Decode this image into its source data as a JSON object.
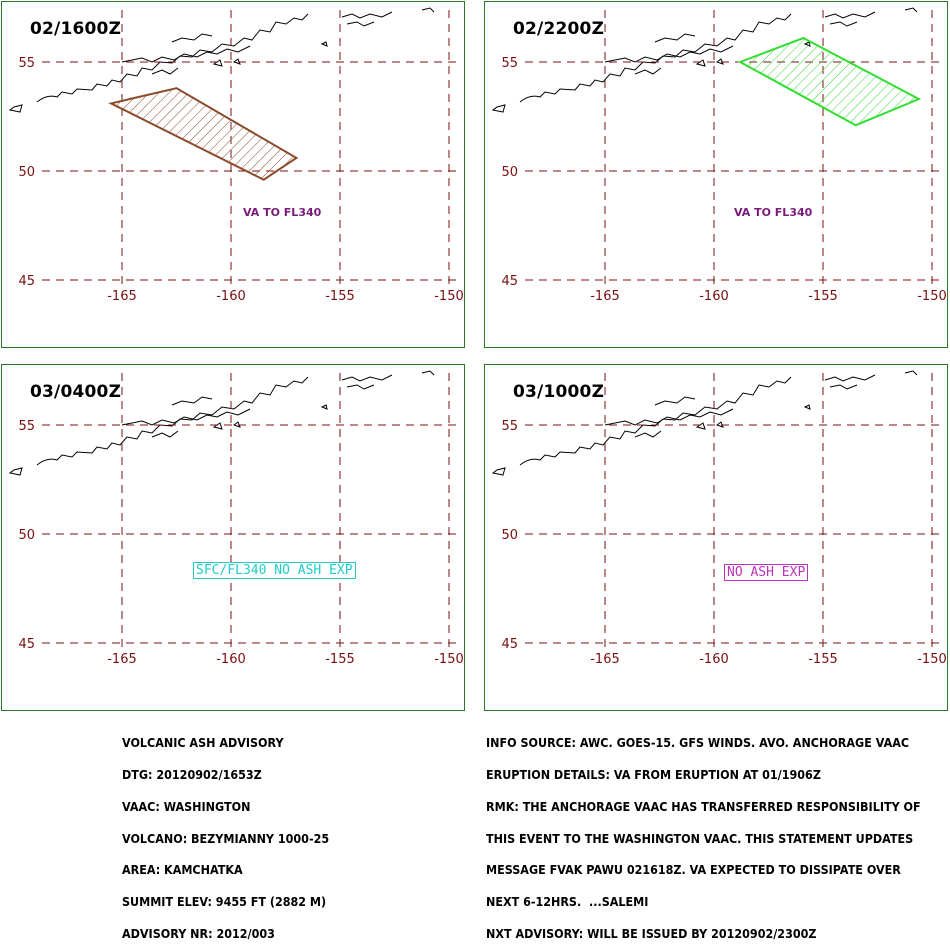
{
  "panels": [
    {
      "time": "02/1600Z",
      "label": "VA TO FL340",
      "label_type": "plain",
      "polygon_color": "#8b4a2b",
      "polygon": [
        [
          -165.5,
          53.1
        ],
        [
          -162.5,
          53.8
        ],
        [
          -157.0,
          50.6
        ],
        [
          -158.5,
          49.6
        ]
      ]
    },
    {
      "time": "02/2200Z",
      "label": "VA TO FL340",
      "label_type": "plain",
      "polygon_color": "#33dd33",
      "polygon": [
        [
          -158.8,
          55.0
        ],
        [
          -155.9,
          56.1
        ],
        [
          -150.6,
          53.3
        ],
        [
          -153.5,
          52.1
        ]
      ]
    },
    {
      "time": "03/0400Z",
      "label": "SFC/FL340 NO ASH EXP",
      "label_type": "boxed",
      "label_color": "#22cccc"
    },
    {
      "time": "03/1000Z",
      "label": "NO ASH EXP",
      "label_type": "boxed",
      "label_color": "#bb33bb"
    }
  ],
  "map": {
    "lat_labels": [
      "55",
      "50",
      "45"
    ],
    "lon_labels": [
      "-165",
      "-160",
      "-155",
      "-150"
    ],
    "grid_color": "#7a1010"
  },
  "advisory_left": [
    "VOLCANIC ASH ADVISORY",
    "DTG: 20120902/1653Z",
    "VAAC: WASHINGTON",
    "VOLCANO: BEZYMIANNY 1000-25",
    "AREA: KAMCHATKA",
    "SUMMIT ELEV: 9455 FT (2882 M)",
    "ADVISORY NR: 2012/003"
  ],
  "advisory_right": [
    "INFO SOURCE: AWC. GOES-15. GFS WINDS. AVO. ANCHORAGE VAAC",
    "ERUPTION DETAILS: VA FROM ERUPTION AT 01/1906Z",
    "RMK: THE ANCHORAGE VAAC HAS TRANSFERRED RESPONSIBILITY OF",
    "THIS EVENT TO THE WASHINGTON VAAC. THIS STATEMENT UPDATES",
    "MESSAGE FVAK PAWU 021618Z. VA EXPECTED TO DISSIPATE OVER",
    "NEXT 6-12HRS.  ...SALEMI",
    "NXT ADVISORY: WILL BE ISSUED BY 20120902/2300Z"
  ]
}
